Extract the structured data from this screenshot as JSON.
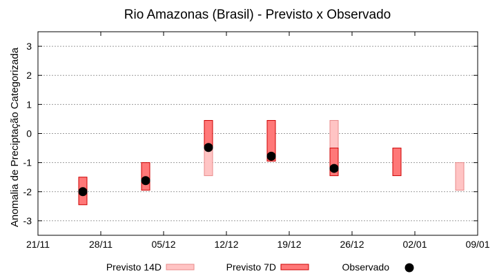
{
  "chart_data": {
    "type": "bar",
    "title": "Rio Amazonas (Brasil) - Previsto x Observado",
    "xlabel": "",
    "ylabel": "Anomalia de Preciptação Categorizada",
    "x_ticks": [
      "21/11",
      "28/11",
      "05/12",
      "12/12",
      "19/12",
      "26/12",
      "02/01",
      "09/01"
    ],
    "y_ticks": [
      -3,
      -2,
      -1,
      0,
      1,
      2,
      3
    ],
    "ylim": [
      -3.5,
      3.5
    ],
    "grid": true,
    "legend_position": "bottom",
    "series": [
      {
        "name": "Previsto 14D",
        "kind": "range",
        "color": "#ffc4c4",
        "stroke": "#e88a8a",
        "points": [
          {
            "x": "2024-12-10",
            "low": -1.45,
            "high": 0.45
          },
          {
            "x": "2024-12-24",
            "low": -1.45,
            "high": 0.45
          },
          {
            "x": "2025-01-07",
            "low": -1.95,
            "high": -1.0
          }
        ]
      },
      {
        "name": "Previsto 7D",
        "kind": "range",
        "color": "#ff7878",
        "stroke": "#cc0000",
        "points": [
          {
            "x": "2024-11-26",
            "low": -2.45,
            "high": -1.5
          },
          {
            "x": "2024-12-03",
            "low": -1.95,
            "high": -1.0
          },
          {
            "x": "2024-12-10",
            "low": -0.5,
            "high": 0.45
          },
          {
            "x": "2024-12-17",
            "low": -0.95,
            "high": 0.45
          },
          {
            "x": "2024-12-24",
            "low": -1.45,
            "high": -0.5
          },
          {
            "x": "2024-12-31",
            "low": -1.45,
            "high": -0.5
          }
        ]
      },
      {
        "name": "Observado",
        "kind": "point",
        "color": "#000000",
        "points": [
          {
            "x": "2024-11-26",
            "y": -2.0
          },
          {
            "x": "2024-12-03",
            "y": -1.62
          },
          {
            "x": "2024-12-10",
            "y": -0.48
          },
          {
            "x": "2024-12-17",
            "y": -0.78
          },
          {
            "x": "2024-12-24",
            "y": -1.2
          }
        ]
      }
    ]
  }
}
